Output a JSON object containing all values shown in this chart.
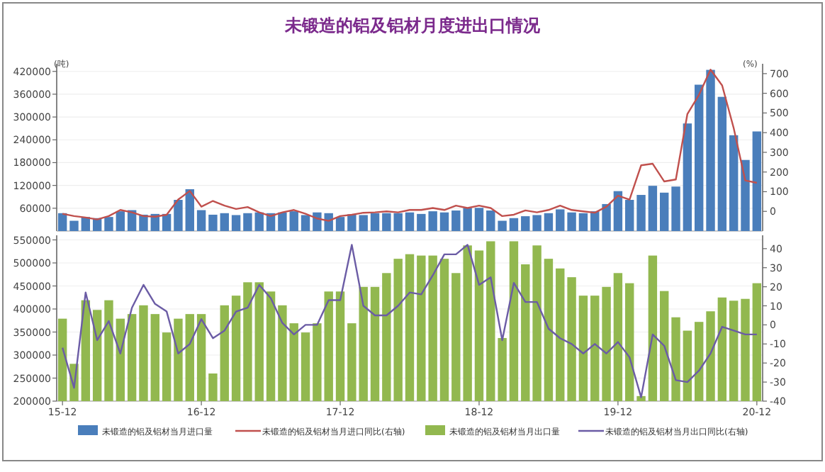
{
  "chart_data": [
    {
      "type": "bar",
      "title": "未锻造的铝及铝材月度进出口情况",
      "ylabel": "(吨)",
      "y2label": "(%)",
      "ylim": [
        0,
        440000
      ],
      "yticks": [
        60000,
        120000,
        180000,
        240000,
        300000,
        360000,
        420000
      ],
      "y2lim": [
        -100,
        750
      ],
      "y2ticks": [
        0,
        100,
        200,
        300,
        400,
        500,
        600,
        700
      ],
      "grid": "y",
      "legend": "bottom",
      "tick_labels": "y",
      "categories": [
        null,
        null,
        null,
        null,
        null,
        null,
        null,
        null,
        null,
        null,
        null,
        null,
        null,
        null,
        null,
        null,
        null,
        null,
        null,
        null,
        null,
        null,
        null,
        null,
        null,
        null,
        null,
        null,
        null,
        null,
        null,
        null,
        null,
        null,
        null,
        null,
        null,
        null,
        null,
        null,
        null,
        null,
        null,
        null,
        null,
        null,
        null,
        null,
        null,
        null,
        null,
        null,
        null,
        null,
        null,
        null,
        null,
        null,
        null,
        null,
        null
      ],
      "series": [
        {
          "name": "未锻造的铝及铝材当月进口量",
          "color": "#4a7ebb",
          "values": [
            47000,
            27000,
            37000,
            34000,
            37000,
            52000,
            55000,
            43000,
            45000,
            45000,
            82000,
            110000,
            55000,
            43000,
            47000,
            42000,
            47000,
            49000,
            47000,
            49000,
            52000,
            42000,
            49000,
            47000,
            37000,
            44000,
            42000,
            47000,
            47000,
            47000,
            49000,
            45000,
            52000,
            49000,
            54000,
            61000,
            61000,
            54000,
            27000,
            34000,
            39000,
            42000,
            47000,
            57000,
            49000,
            47000,
            52000,
            71000,
            105000,
            82000,
            95000,
            119000,
            101000,
            117000,
            283000,
            385000,
            424000,
            353000,
            252000,
            187000,
            262000
          ]
        },
        {
          "name": "未锻造的铝及铝材当月进口同比(右轴)",
          "type": "line",
          "axis": "y2",
          "color": "#c0504d",
          "values": [
            -12,
            -24,
            -31,
            -41,
            -24,
            7,
            -5,
            -24,
            -27,
            -17,
            60,
            104,
            24,
            53,
            29,
            12,
            22,
            -5,
            -24,
            -5,
            7,
            -12,
            -36,
            -48,
            -24,
            -17,
            -7,
            -5,
            0,
            -5,
            7,
            7,
            17,
            7,
            29,
            17,
            29,
            17,
            -24,
            -17,
            5,
            -5,
            7,
            29,
            7,
            0,
            -7,
            24,
            80,
            60,
            234,
            242,
            152,
            162,
            495,
            592,
            720,
            640,
            423,
            157,
            145
          ]
        }
      ]
    },
    {
      "type": "bar",
      "ylim": [
        200000,
        560000
      ],
      "yticks": [
        200000,
        250000,
        300000,
        350000,
        400000,
        450000,
        500000,
        550000
      ],
      "y2lim": [
        -40,
        47
      ],
      "y2ticks": [
        -40,
        -30,
        -20,
        -10,
        0,
        10,
        20,
        30,
        40
      ],
      "grid": "y",
      "legend": "bottom",
      "categories": [
        "15-12",
        null,
        null,
        null,
        null,
        null,
        null,
        null,
        null,
        null,
        null,
        null,
        "16-12",
        null,
        null,
        null,
        null,
        null,
        null,
        null,
        null,
        null,
        null,
        null,
        "17-12",
        null,
        null,
        null,
        null,
        null,
        null,
        null,
        null,
        null,
        null,
        null,
        "18-12",
        null,
        null,
        null,
        null,
        null,
        null,
        null,
        null,
        null,
        null,
        null,
        "19-12",
        null,
        null,
        null,
        null,
        null,
        null,
        null,
        null,
        null,
        null,
        null,
        "20-12"
      ],
      "series": [
        {
          "name": "未锻造的铝及铝材当月出口量",
          "color": "#92b84f",
          "values": [
            379000,
            281000,
            419000,
            398000,
            419000,
            379000,
            389000,
            408000,
            389000,
            349000,
            379000,
            389000,
            389000,
            260000,
            408000,
            429000,
            458000,
            458000,
            438000,
            408000,
            369000,
            349000,
            369000,
            438000,
            438000,
            369000,
            448000,
            448000,
            478000,
            509000,
            519000,
            516000,
            516000,
            509000,
            478000,
            538000,
            527000,
            547000,
            337000,
            547000,
            497000,
            538000,
            509000,
            488000,
            469000,
            429000,
            429000,
            448000,
            478000,
            456000,
            211000,
            516000,
            439000,
            382000,
            353000,
            372000,
            395000,
            425000,
            418000,
            422000,
            456000
          ]
        },
        {
          "name": "未锻造的铝及铝材当月出口同比(右轴)",
          "type": "line",
          "axis": "y2",
          "color": "#6b5ca5",
          "values": [
            -12,
            -33,
            17,
            -8,
            2,
            -15,
            9,
            21,
            11,
            7,
            -15,
            -10,
            3,
            -7,
            -3,
            7,
            9,
            21,
            14,
            1,
            -5,
            0,
            0,
            13,
            13,
            42,
            10,
            5,
            5,
            10,
            17,
            16,
            26,
            37,
            37,
            42,
            21,
            25,
            -8,
            22,
            12,
            12,
            -2,
            -7,
            -10,
            -15,
            -10,
            -15,
            -9,
            -17,
            -38,
            -5,
            -11,
            -29,
            -30,
            -24,
            -15,
            -1,
            -3,
            -5,
            -5
          ]
        }
      ]
    }
  ]
}
